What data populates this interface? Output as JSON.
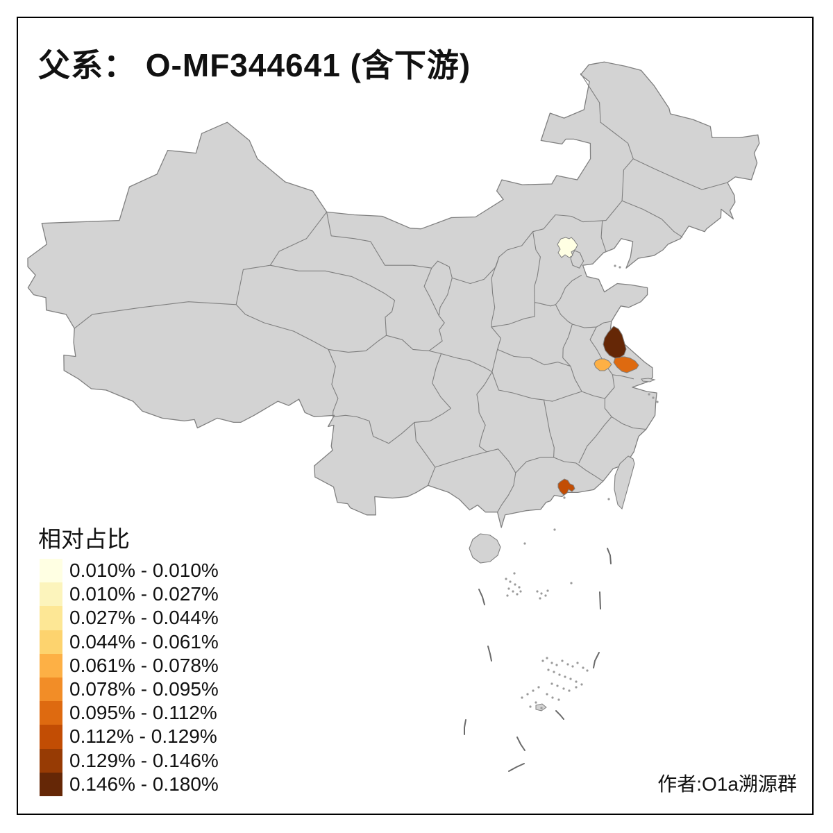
{
  "title": "父系： O-MF344641 (含下游)",
  "author_credit": "作者:O1a溯源群",
  "legend": {
    "title": "相对占比",
    "bins": [
      {
        "label": "0.010% - 0.010%",
        "color": "#FFFFE3"
      },
      {
        "label": "0.010% - 0.027%",
        "color": "#FCF4BC"
      },
      {
        "label": "0.027% - 0.044%",
        "color": "#FDE795"
      },
      {
        "label": "0.044% - 0.061%",
        "color": "#FDD36E"
      },
      {
        "label": "0.061% - 0.078%",
        "color": "#FDB045"
      },
      {
        "label": "0.078% - 0.095%",
        "color": "#F28D27"
      },
      {
        "label": "0.095% - 0.112%",
        "color": "#DE6A10"
      },
      {
        "label": "0.112% - 0.129%",
        "color": "#C24D04"
      },
      {
        "label": "0.129% - 0.146%",
        "color": "#973B04"
      },
      {
        "label": "0.146% - 0.180%",
        "color": "#652706"
      }
    ]
  },
  "map": {
    "land_fill": "#D3D3D3",
    "border_color": "#7F7F7F",
    "sea_color": "#FFFFFF",
    "frame_color": "#000000"
  },
  "chart_data": {
    "type": "choropleth_map",
    "title": "父系： O-MF344641 (含下游)",
    "legend_title": "相对占比",
    "unit": "percent",
    "bin_edges_percent": [
      0.01,
      0.01,
      0.027,
      0.044,
      0.061,
      0.078,
      0.095,
      0.112,
      0.129,
      0.146,
      0.18
    ],
    "regions": [
      {
        "id": "beijing-area",
        "bin": 1,
        "value_range": "0.010% - 0.010%",
        "color": "#FFFFE3"
      },
      {
        "id": "nanjing-area",
        "bin": 5,
        "value_range": "0.061% - 0.078%",
        "color": "#FDB045"
      },
      {
        "id": "central-jiangsu-coastal",
        "bin": 7,
        "value_range": "0.095% - 0.112%",
        "color": "#DE6A10"
      },
      {
        "id": "east-guangdong-coastal",
        "bin": 8,
        "value_range": "0.112% - 0.129%",
        "color": "#C24D04"
      },
      {
        "id": "north-jiangsu-coastal",
        "bin": 10,
        "value_range": "0.146% - 0.180%",
        "color": "#652706"
      }
    ],
    "uncolored_region_note": "all other provinces shown in neutral gray"
  }
}
